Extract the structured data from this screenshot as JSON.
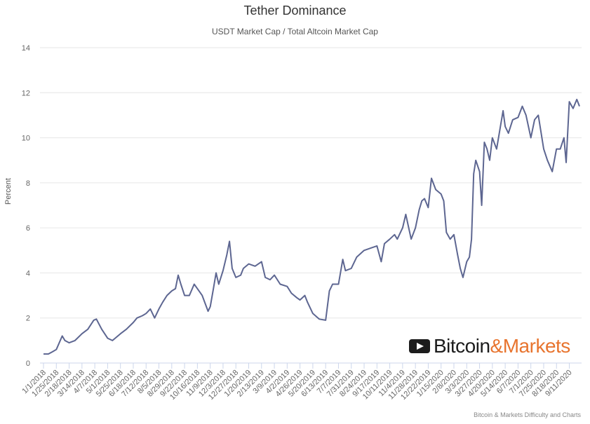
{
  "chart_data": {
    "type": "line",
    "title": "Tether Dominance",
    "subtitle": "USDT Market Cap / Total Altcoin Market Cap",
    "xlabel": "",
    "ylabel": "Percent",
    "ylim": [
      0,
      14
    ],
    "yticks": [
      0,
      2,
      4,
      6,
      8,
      10,
      12,
      14
    ],
    "grid": true,
    "legend": "none",
    "line_color": "#5d6691",
    "x_tick_labels": [
      "1/1/2018",
      "1/25/2018",
      "2/18/2018",
      "3/14/2018",
      "4/7/2018",
      "5/1/2018",
      "5/25/2018",
      "6/18/2018",
      "7/12/2018",
      "8/5/2018",
      "8/29/2018",
      "9/22/2018",
      "10/16/2018",
      "11/9/2018",
      "12/3/2018",
      "12/27/2018",
      "1/20/2019",
      "2/13/2019",
      "3/9/2019",
      "4/2/2019",
      "4/26/2019",
      "5/20/2019",
      "6/13/2019",
      "7/7/2019",
      "7/31/2019",
      "8/24/2019",
      "9/17/2019",
      "10/11/2019",
      "11/4/2019",
      "11/28/2019",
      "12/22/2019",
      "1/15/2020",
      "2/8/2020",
      "3/3/2020",
      "3/27/2020",
      "4/20/2020",
      "5/14/2020",
      "6/7/2020",
      "7/1/2020",
      "7/25/2020",
      "8/18/2020",
      "9/11/2020"
    ],
    "series": [
      {
        "x": [
          "2018-01-01",
          "2018-01-10",
          "2018-01-18",
          "2018-01-25",
          "2018-02-05",
          "2018-02-10",
          "2018-02-18",
          "2018-03-01",
          "2018-03-14",
          "2018-03-25",
          "2018-04-05",
          "2018-04-10",
          "2018-04-20",
          "2018-05-01",
          "2018-05-10",
          "2018-05-25",
          "2018-06-05",
          "2018-06-18",
          "2018-06-25",
          "2018-07-05",
          "2018-07-12",
          "2018-07-20",
          "2018-07-28",
          "2018-08-05",
          "2018-08-12",
          "2018-08-20",
          "2018-08-29",
          "2018-09-05",
          "2018-09-10",
          "2018-09-15",
          "2018-09-22",
          "2018-10-01",
          "2018-10-10",
          "2018-10-16",
          "2018-10-25",
          "2018-11-05",
          "2018-11-09",
          "2018-11-15",
          "2018-11-20",
          "2018-11-25",
          "2018-12-03",
          "2018-12-10",
          "2018-12-15",
          "2018-12-20",
          "2018-12-27",
          "2019-01-05",
          "2019-01-10",
          "2019-01-20",
          "2019-02-01",
          "2019-02-13",
          "2019-02-20",
          "2019-03-01",
          "2019-03-09",
          "2019-03-20",
          "2019-04-02",
          "2019-04-10",
          "2019-04-20",
          "2019-04-26",
          "2019-05-05",
          "2019-05-10",
          "2019-05-20",
          "2019-06-01",
          "2019-06-13",
          "2019-06-20",
          "2019-06-26",
          "2019-07-07",
          "2019-07-15",
          "2019-07-20",
          "2019-07-31",
          "2019-08-10",
          "2019-08-24",
          "2019-09-05",
          "2019-09-17",
          "2019-09-25",
          "2019-10-01",
          "2019-10-11",
          "2019-10-20",
          "2019-10-25",
          "2019-11-04",
          "2019-11-10",
          "2019-11-20",
          "2019-11-28",
          "2019-12-05",
          "2019-12-10",
          "2019-12-15",
          "2019-12-22",
          "2019-12-28",
          "2020-01-05",
          "2020-01-15",
          "2020-01-20",
          "2020-01-25",
          "2020-02-01",
          "2020-02-08",
          "2020-02-15",
          "2020-02-20",
          "2020-02-25",
          "2020-03-03",
          "2020-03-08",
          "2020-03-12",
          "2020-03-16",
          "2020-03-20",
          "2020-03-27",
          "2020-03-31",
          "2020-04-05",
          "2020-04-10",
          "2020-04-15",
          "2020-04-20",
          "2020-04-28",
          "2020-05-05",
          "2020-05-10",
          "2020-05-14",
          "2020-05-20",
          "2020-05-28",
          "2020-06-07",
          "2020-06-15",
          "2020-06-22",
          "2020-07-01",
          "2020-07-08",
          "2020-07-15",
          "2020-07-25",
          "2020-08-01",
          "2020-08-10",
          "2020-08-18",
          "2020-08-25",
          "2020-09-01",
          "2020-09-05",
          "2020-09-11",
          "2020-09-18",
          "2020-09-25",
          "2020-09-30"
        ],
        "values": [
          0.4,
          0.4,
          0.5,
          0.6,
          1.2,
          1.0,
          0.9,
          1.0,
          1.3,
          1.5,
          1.9,
          1.95,
          1.5,
          1.1,
          1.0,
          1.3,
          1.5,
          1.8,
          2.0,
          2.1,
          2.2,
          2.4,
          2.0,
          2.4,
          2.7,
          3.0,
          3.2,
          3.3,
          3.9,
          3.5,
          3.0,
          3.0,
          3.5,
          3.3,
          3.0,
          2.3,
          2.5,
          3.3,
          4.0,
          3.5,
          4.1,
          4.8,
          5.4,
          4.2,
          3.8,
          3.9,
          4.2,
          4.4,
          4.3,
          4.5,
          3.8,
          3.7,
          3.9,
          3.5,
          3.4,
          3.1,
          2.9,
          2.8,
          3.0,
          2.7,
          2.2,
          1.95,
          1.9,
          3.2,
          3.5,
          3.5,
          4.6,
          4.1,
          4.2,
          4.7,
          5.0,
          5.1,
          5.2,
          4.5,
          5.3,
          5.5,
          5.7,
          5.5,
          6.0,
          6.6,
          5.5,
          6.0,
          6.8,
          7.2,
          7.3,
          6.9,
          8.2,
          7.7,
          7.5,
          7.2,
          5.8,
          5.5,
          5.7,
          4.8,
          4.2,
          3.8,
          4.5,
          4.7,
          5.5,
          8.4,
          9.0,
          8.5,
          7.0,
          9.8,
          9.5,
          9.0,
          10.0,
          9.5,
          10.5,
          11.2,
          10.5,
          10.2,
          10.8,
          10.9,
          11.4,
          11.0,
          10.0,
          10.8,
          11.0,
          9.5,
          9.0,
          8.5,
          9.5,
          9.5,
          10.0,
          8.9,
          11.6,
          11.3,
          11.7,
          11.4
        ]
      }
    ],
    "credits": "Bitcoin & Markets Difficulty and Charts",
    "watermark": {
      "icon": "play-icon",
      "part1": "Bitcoin",
      "part2": "&Markets",
      "accent": "#e8742e"
    }
  }
}
